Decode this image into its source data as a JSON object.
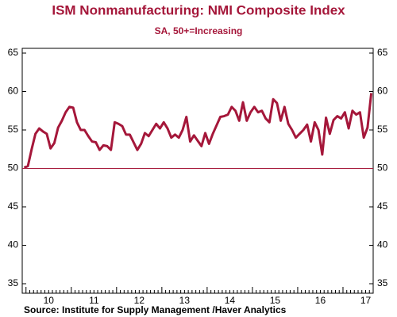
{
  "chart_data": {
    "type": "line",
    "title": "ISM Nonmanufacturing: NMI Composite Index",
    "subtitle": "SA, 50+=Increasing",
    "source": "Source:  Institute for Supply Management /Haver Analytics",
    "categories": [
      null,
      null,
      null,
      null,
      null,
      null,
      null,
      "10",
      null,
      null,
      null,
      null,
      null,
      null,
      null,
      null,
      null,
      null,
      null,
      "11",
      null,
      null,
      null,
      null,
      null,
      null,
      null,
      null,
      null,
      null,
      null,
      "12",
      null,
      null,
      null,
      null,
      null,
      null,
      null,
      null,
      null,
      null,
      null,
      "13",
      null,
      null,
      null,
      null,
      null,
      null,
      null,
      null,
      null,
      null,
      null,
      "14",
      null,
      null,
      null,
      null,
      null,
      null,
      null,
      null,
      null,
      null,
      null,
      "15",
      null,
      null,
      null,
      null,
      null,
      null,
      null,
      null,
      null,
      null,
      null,
      "16",
      null,
      null,
      null,
      null,
      null,
      null,
      null,
      null,
      null,
      null,
      null,
      "17",
      null
    ],
    "series": [
      {
        "color": "#a5173a",
        "values": [
          50.1,
          50.3,
          52.5,
          54.5,
          55.2,
          54.8,
          54.5,
          52.6,
          53.3,
          55.3,
          56.2,
          57.3,
          58.0,
          57.9,
          56.0,
          55.0,
          55.0,
          54.2,
          53.5,
          53.4,
          52.4,
          53.0,
          52.9,
          52.4,
          56.0,
          55.8,
          55.5,
          54.4,
          54.4,
          53.4,
          52.4,
          53.2,
          54.6,
          54.2,
          55.0,
          55.8,
          55.2,
          56.0,
          55.2,
          54.0,
          54.4,
          54.0,
          55.0,
          56.7,
          53.5,
          54.3,
          53.6,
          52.9,
          54.6,
          53.2,
          54.5,
          55.6,
          56.7,
          56.8,
          57.0,
          58.0,
          57.5,
          56.2,
          58.6,
          56.2,
          57.3,
          58.0,
          57.3,
          57.5,
          56.5,
          56.0,
          59.0,
          58.5,
          56.2,
          58.0,
          55.8,
          55.0,
          54.0,
          54.5,
          55.0,
          55.7,
          53.5,
          56.0,
          55.0,
          51.8,
          56.6,
          54.5,
          56.3,
          56.8,
          56.5,
          57.3,
          55.2,
          57.5,
          57.0,
          57.3,
          54.0,
          55.3,
          59.8
        ]
      }
    ],
    "ylim": [
      35,
      65
    ],
    "yticks": [
      35,
      40,
      45,
      50,
      55,
      60,
      65
    ],
    "y2lim": [
      35,
      65
    ],
    "y2ticks": [
      35,
      40,
      45,
      50,
      55,
      60,
      65
    ],
    "reference_line": 50,
    "reference_color": "#a5173a",
    "grid": false
  }
}
